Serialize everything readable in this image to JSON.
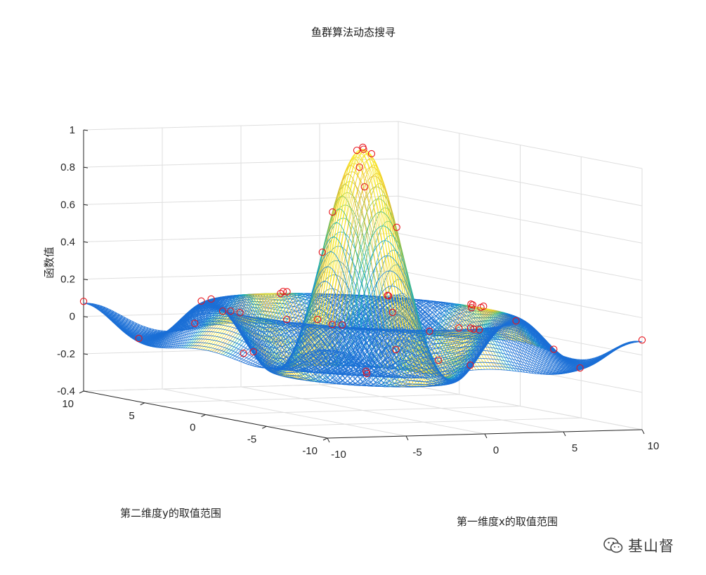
{
  "chart_data": {
    "type": "surface",
    "title": "鱼群算法动态搜寻",
    "xlabel": "第一维度x的取值范围",
    "ylabel": "第二维度y的取值范围",
    "zlabel": "函数值",
    "xlim": [
      -10,
      10
    ],
    "ylim": [
      -10,
      10
    ],
    "zlim": [
      -0.4,
      1
    ],
    "x_ticks": [
      "-10",
      "-5",
      "0",
      "5",
      "10"
    ],
    "y_ticks": [
      "-10",
      "-5",
      "0",
      "5",
      "10"
    ],
    "z_ticks": [
      "-0.4",
      "-0.2",
      "0",
      "0.2",
      "0.4",
      "0.6",
      "0.8",
      "1"
    ],
    "function": "z = sin(sqrt(x^2+y^2)) / sqrt(x^2+y^2)",
    "grid": true,
    "colormap": "parula",
    "mesh_color": "#1a6fd6",
    "marker_color": "#e8141c",
    "markers": [
      {
        "x": 0.2,
        "y": 0.2
      },
      {
        "x": -0.3,
        "y": 0.1
      },
      {
        "x": 0.4,
        "y": -0.2
      },
      {
        "x": -0.6,
        "y": -0.5
      },
      {
        "x": 0.8,
        "y": 0.9
      },
      {
        "x": -1.0,
        "y": 1.2
      },
      {
        "x": 1.3,
        "y": -1.1
      },
      {
        "x": 0.0,
        "y": 0.0
      },
      {
        "x": -1.8,
        "y": 1.0
      },
      {
        "x": 7.3,
        "y": 0.5
      },
      {
        "x": 7.6,
        "y": 0.8
      },
      {
        "x": 7.8,
        "y": 1.2
      },
      {
        "x": 7.9,
        "y": 0.3
      },
      {
        "x": 8.2,
        "y": 0.9
      },
      {
        "x": -7.5,
        "y": 0.4
      },
      {
        "x": -7.7,
        "y": 0.9
      },
      {
        "x": -7.9,
        "y": 1.3
      },
      {
        "x": 0.5,
        "y": 7.4
      },
      {
        "x": 0.9,
        "y": 7.7
      },
      {
        "x": 1.3,
        "y": 7.9
      },
      {
        "x": 0.3,
        "y": -7.5
      },
      {
        "x": 0.8,
        "y": -7.8
      },
      {
        "x": 1.2,
        "y": -8.0
      },
      {
        "x": 5.6,
        "y": 5.2
      },
      {
        "x": 5.9,
        "y": 5.5
      },
      {
        "x": -5.3,
        "y": 5.6
      },
      {
        "x": -5.7,
        "y": 5.9
      },
      {
        "x": 5.4,
        "y": -5.6
      },
      {
        "x": -5.5,
        "y": -5.4
      },
      {
        "x": -5.9,
        "y": -5.1
      },
      {
        "x": 4.5,
        "y": 3.1
      },
      {
        "x": -3.2,
        "y": -4.4
      },
      {
        "x": 3.5,
        "y": -4.3
      },
      {
        "x": -4.4,
        "y": 3.3
      },
      {
        "x": 10,
        "y": -10
      },
      {
        "x": -10,
        "y": 10
      },
      {
        "x": 9.2,
        "y": 6.4
      },
      {
        "x": -6.8,
        "y": -9.1
      },
      {
        "x": 2.6,
        "y": 9.6
      },
      {
        "x": 9.5,
        "y": -3.4
      },
      {
        "x": -9.6,
        "y": -2.6
      },
      {
        "x": -3.4,
        "y": 9.4
      },
      {
        "x": 6.6,
        "y": -9.3
      },
      {
        "x": -9.2,
        "y": 6.5
      },
      {
        "x": 8.7,
        "y": 8.8
      },
      {
        "x": -2.4,
        "y": -9.3
      },
      {
        "x": 4.1,
        "y": 9.0
      },
      {
        "x": 9.3,
        "y": 2.9
      }
    ]
  },
  "watermark": {
    "text": "基山督",
    "icon": "wechat-icon"
  }
}
